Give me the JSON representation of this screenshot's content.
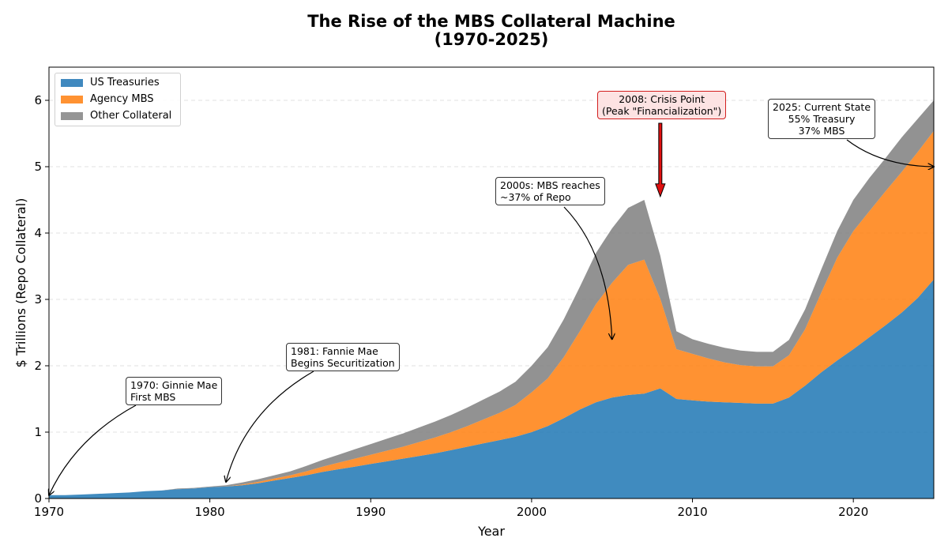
{
  "chart_data": {
    "type": "area",
    "stacked": true,
    "title": "The Rise of the MBS Collateral Machine\n(1970-2025)",
    "title_lines": [
      "The Rise of the MBS Collateral Machine",
      "(1970-2025)"
    ],
    "xlabel": "Year",
    "ylabel": "$ Trillions (Repo Collateral)",
    "xlim": [
      1970,
      2025
    ],
    "ylim": [
      0,
      6.5
    ],
    "xticks": [
      1970,
      1980,
      1990,
      2000,
      2010,
      2020
    ],
    "yticks": [
      0,
      1,
      2,
      3,
      4,
      5,
      6
    ],
    "grid": "y-dashed",
    "legend_position": "top-left",
    "x": [
      1970,
      1971,
      1972,
      1973,
      1974,
      1975,
      1976,
      1977,
      1978,
      1979,
      1980,
      1981,
      1982,
      1983,
      1984,
      1985,
      1986,
      1987,
      1988,
      1989,
      1990,
      1991,
      1992,
      1993,
      1994,
      1995,
      1996,
      1997,
      1998,
      1999,
      2000,
      2001,
      2002,
      2003,
      2004,
      2005,
      2006,
      2007,
      2008,
      2009,
      2010,
      2011,
      2012,
      2013,
      2014,
      2015,
      2016,
      2017,
      2018,
      2019,
      2020,
      2021,
      2022,
      2023,
      2024,
      2025
    ],
    "series": [
      {
        "name": "US Treasuries",
        "color": "#1f77b4",
        "values": [
          0.05,
          0.05,
          0.06,
          0.07,
          0.08,
          0.09,
          0.11,
          0.12,
          0.14,
          0.15,
          0.17,
          0.18,
          0.2,
          0.23,
          0.27,
          0.31,
          0.35,
          0.4,
          0.44,
          0.48,
          0.52,
          0.56,
          0.6,
          0.64,
          0.68,
          0.73,
          0.78,
          0.83,
          0.88,
          0.93,
          1.0,
          1.09,
          1.21,
          1.34,
          1.45,
          1.52,
          1.56,
          1.58,
          1.66,
          1.5,
          1.48,
          1.46,
          1.45,
          1.44,
          1.43,
          1.43,
          1.52,
          1.7,
          1.9,
          2.08,
          2.25,
          2.43,
          2.61,
          2.8,
          3.02,
          3.3
        ]
      },
      {
        "name": "Agency MBS",
        "color": "#ff7f0e",
        "values": [
          0,
          0,
          0,
          0,
          0,
          0,
          0,
          0,
          0,
          0,
          0,
          0,
          0.01,
          0.02,
          0.03,
          0.04,
          0.06,
          0.08,
          0.1,
          0.12,
          0.14,
          0.16,
          0.18,
          0.21,
          0.24,
          0.27,
          0.31,
          0.36,
          0.41,
          0.48,
          0.6,
          0.72,
          0.92,
          1.18,
          1.48,
          1.73,
          1.96,
          2.02,
          1.35,
          0.75,
          0.7,
          0.65,
          0.6,
          0.57,
          0.56,
          0.56,
          0.64,
          0.85,
          1.2,
          1.55,
          1.78,
          1.9,
          2.02,
          2.12,
          2.2,
          2.24
        ]
      },
      {
        "name": "Other Collateral",
        "color": "#7f7f7f",
        "values": [
          0,
          0,
          0,
          0,
          0,
          0,
          0,
          0,
          0.01,
          0.01,
          0.01,
          0.02,
          0.03,
          0.04,
          0.05,
          0.06,
          0.08,
          0.1,
          0.12,
          0.14,
          0.16,
          0.18,
          0.2,
          0.22,
          0.24,
          0.26,
          0.28,
          0.3,
          0.32,
          0.35,
          0.4,
          0.47,
          0.57,
          0.67,
          0.77,
          0.82,
          0.86,
          0.9,
          0.65,
          0.27,
          0.22,
          0.22,
          0.22,
          0.22,
          0.22,
          0.22,
          0.23,
          0.3,
          0.35,
          0.4,
          0.47,
          0.5,
          0.5,
          0.52,
          0.5,
          0.46
        ]
      }
    ],
    "annotations": [
      {
        "text": "1970: Ginnie Mae\nFirst MBS",
        "point_x": 1970,
        "point_y": 0.05
      },
      {
        "text": "1981: Fannie Mae\nBegins Securitization",
        "point_x": 1981,
        "point_y": 0.25
      },
      {
        "text": "2000s: MBS reaches\n~37% of Repo",
        "point_x": 2005,
        "point_y": 2.4
      },
      {
        "text": "2008: Crisis Point\n(Peak \"Financialization\")",
        "point_x": 2008,
        "point_y": 4.55
      },
      {
        "text": "2025: Current State\n55% Treasury\n37% MBS",
        "point_x": 2025,
        "point_y": 5.0
      }
    ]
  }
}
